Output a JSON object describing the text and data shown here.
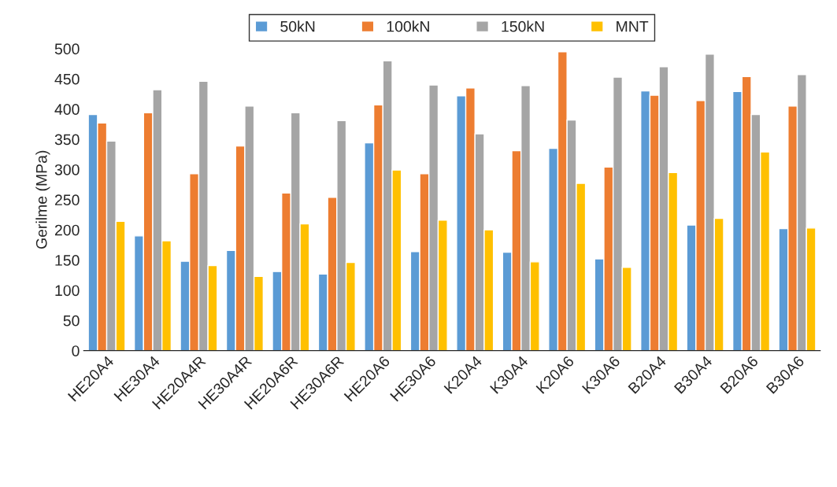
{
  "chart_data": {
    "type": "bar",
    "ylabel": "Gerilme (MPa)",
    "categories": [
      "HE20A4",
      "HE30A4",
      "HE20A4R",
      "HE30A4R",
      "HE20A6R",
      "HE30A6R",
      "HE20A6",
      "HE30A6",
      "K20A4",
      "K30A4",
      "K20A6",
      "K30A6",
      "B20A4",
      "B30A4",
      "B20A6",
      "B30A6"
    ],
    "series": [
      {
        "name": "50kN",
        "color": "#5b9bd5",
        "values": [
          391,
          190,
          148,
          166,
          131,
          127,
          344,
          164,
          422,
          163,
          335,
          152,
          430,
          208,
          429,
          202
        ]
      },
      {
        "name": "100kN",
        "color": "#ed7d31",
        "values": [
          377,
          394,
          293,
          339,
          261,
          254,
          407,
          293,
          435,
          331,
          495,
          304,
          423,
          414,
          454,
          405
        ]
      },
      {
        "name": "150kN",
        "color": "#a5a5a5",
        "values": [
          347,
          432,
          446,
          405,
          394,
          381,
          480,
          440,
          359,
          439,
          382,
          453,
          470,
          491,
          391,
          457
        ]
      },
      {
        "name": "MNT",
        "color": "#ffc000",
        "values": [
          214,
          182,
          141,
          123,
          210,
          146,
          299,
          216,
          200,
          147,
          277,
          138,
          295,
          219,
          329,
          203
        ]
      }
    ],
    "ylim": [
      0,
      500
    ],
    "yticks": [
      0,
      50,
      100,
      150,
      200,
      250,
      300,
      350,
      400,
      450,
      500
    ],
    "grid": false,
    "legend": "top"
  }
}
